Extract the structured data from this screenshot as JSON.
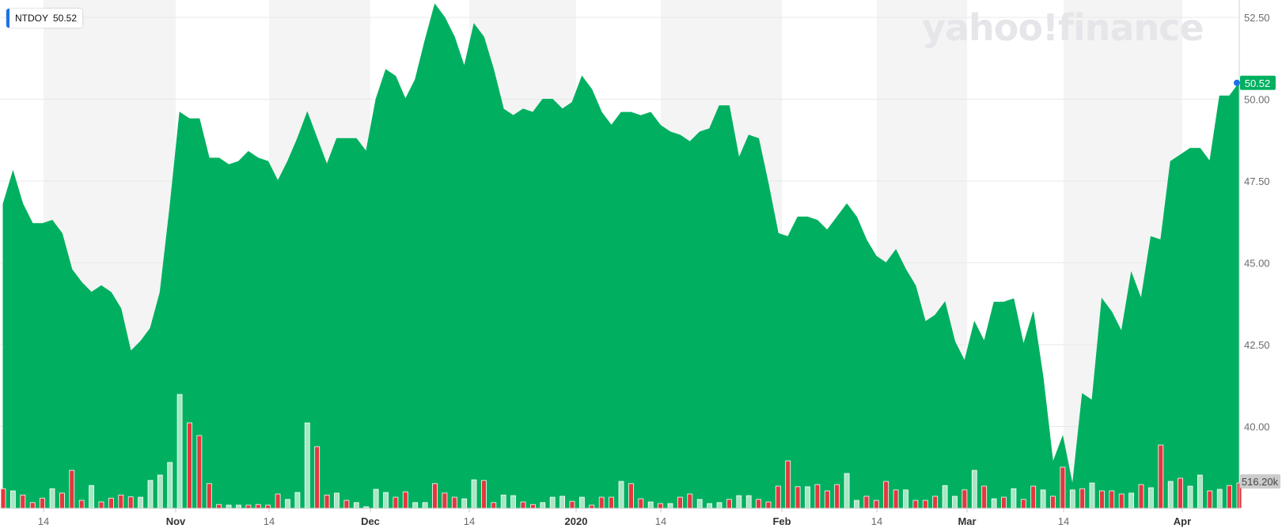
{
  "ticker": {
    "symbol": "NTDOY",
    "price": "50.52"
  },
  "watermark": {
    "text": "yahoo!finance"
  },
  "colors": {
    "area": "#00b060",
    "up_volume": "#a8e6c4",
    "down_volume": "#e0393e",
    "band": "#f4f4f4",
    "price_badge": "#00b060",
    "volume_badge": "#cccccc"
  },
  "chart_data": {
    "type": "area",
    "title": "",
    "ylim": [
      37.5,
      53.0
    ],
    "y_ticks": [
      "52.50",
      "50.00",
      "47.50",
      "45.00",
      "42.50",
      "40.00"
    ],
    "x_ticks": [
      "14",
      "Nov",
      "14",
      "Dec",
      "14",
      "2020",
      "14",
      "Feb",
      "14",
      "Mar",
      "14",
      "Apr"
    ],
    "last_price_label": "50.52",
    "last_volume_label": "516.20k",
    "grid": true,
    "series": [
      {
        "values": [
          46.8,
          47.8,
          46.8,
          46.2,
          46.2,
          46.3,
          45.9,
          44.8,
          44.4,
          44.1,
          44.3,
          44.1,
          43.6,
          42.3,
          42.6,
          43.0,
          44.1,
          46.7,
          49.6,
          49.4,
          49.4,
          48.2,
          48.2,
          48.0,
          48.1,
          48.4,
          48.2,
          48.1,
          47.5,
          48.1,
          48.8,
          49.6,
          48.8,
          48.0,
          48.8,
          48.8,
          48.8,
          48.4,
          50.0,
          50.9,
          50.7,
          50.0,
          50.6,
          51.8,
          52.9,
          52.5,
          51.9,
          51.0,
          52.3,
          51.9,
          50.9,
          49.7,
          49.5,
          49.7,
          49.6,
          50.0,
          50.0,
          49.7,
          49.9,
          50.7,
          50.3,
          49.6,
          49.2,
          49.6,
          49.6,
          49.5,
          49.6,
          49.2,
          49.0,
          48.9,
          48.7,
          49.0,
          49.1,
          49.8,
          49.8,
          48.2,
          48.9,
          48.8,
          47.4,
          45.9,
          45.8,
          46.4,
          46.4,
          46.3,
          46.0,
          46.4,
          46.8,
          46.4,
          45.7,
          45.2,
          45.0,
          45.4,
          44.8,
          44.3,
          43.2,
          43.4,
          43.8,
          42.6,
          42.0,
          43.2,
          42.6,
          43.8,
          43.8,
          43.9,
          42.5,
          43.5,
          41.5,
          38.9,
          39.7,
          38.2,
          41.0,
          40.8,
          43.9,
          43.5,
          42.9,
          44.7,
          43.9,
          45.8,
          45.7,
          48.1,
          48.3,
          48.5,
          48.5,
          48.1,
          50.1,
          50.1,
          50.5
        ],
        "volumes": [
          0.62,
          0.55,
          0.42,
          0.18,
          0.32,
          0.62,
          0.48,
          1.2,
          0.25,
          0.72,
          0.2,
          0.32,
          0.42,
          0.36,
          0.35,
          0.88,
          1.05,
          1.45,
          3.6,
          2.7,
          2.3,
          0.78,
          0.12,
          0.1,
          0.1,
          0.1,
          0.12,
          0.1,
          0.45,
          0.28,
          0.5,
          2.7,
          1.95,
          0.42,
          0.48,
          0.25,
          0.18,
          0.05,
          0.6,
          0.5,
          0.35,
          0.52,
          0.18,
          0.18,
          0.78,
          0.48,
          0.35,
          0.3,
          0.9,
          0.88,
          0.18,
          0.42,
          0.4,
          0.2,
          0.12,
          0.18,
          0.35,
          0.38,
          0.22,
          0.35,
          0.1,
          0.35,
          0.35,
          0.85,
          0.78,
          0.3,
          0.2,
          0.15,
          0.15,
          0.35,
          0.45,
          0.28,
          0.15,
          0.18,
          0.28,
          0.4,
          0.4,
          0.28,
          0.2,
          0.7,
          1.5,
          0.68,
          0.68,
          0.75,
          0.55,
          0.75,
          1.1,
          0.25,
          0.38,
          0.25,
          0.85,
          0.58,
          0.58,
          0.25,
          0.25,
          0.38,
          0.72,
          0.38,
          0.58,
          1.2,
          0.7,
          0.3,
          0.35,
          0.62,
          0.28,
          0.7,
          0.58,
          0.38,
          1.3,
          0.58,
          0.62,
          0.8,
          0.55,
          0.55,
          0.45,
          0.48,
          0.75,
          0.65,
          2.0,
          0.85,
          0.95,
          0.7,
          1.05,
          0.55,
          0.6,
          0.72,
          0.8
        ],
        "down": [
          1,
          0,
          1,
          1,
          1,
          0,
          1,
          1,
          1,
          0,
          1,
          1,
          1,
          1,
          0,
          0,
          0,
          0,
          0,
          1,
          1,
          1,
          1,
          0,
          0,
          1,
          1,
          1,
          1,
          0,
          0,
          0,
          1,
          1,
          0,
          1,
          0,
          0,
          0,
          0,
          1,
          1,
          0,
          0,
          1,
          1,
          1,
          0,
          0,
          1,
          1,
          0,
          0,
          1,
          1,
          0,
          0,
          0,
          1,
          0,
          1,
          1,
          1,
          0,
          1,
          1,
          0,
          1,
          0,
          1,
          1,
          0,
          0,
          0,
          1,
          0,
          0,
          1,
          1,
          1,
          1,
          1,
          0,
          1,
          1,
          1,
          0,
          0,
          1,
          1,
          1,
          1,
          0,
          1,
          1,
          1,
          0,
          0,
          1,
          0,
          1,
          0,
          1,
          0,
          1,
          1,
          0,
          1,
          1,
          0,
          1,
          0,
          1,
          1,
          1,
          0,
          1,
          0,
          1,
          0,
          1,
          0,
          0,
          1,
          0,
          1,
          1
        ]
      }
    ]
  }
}
